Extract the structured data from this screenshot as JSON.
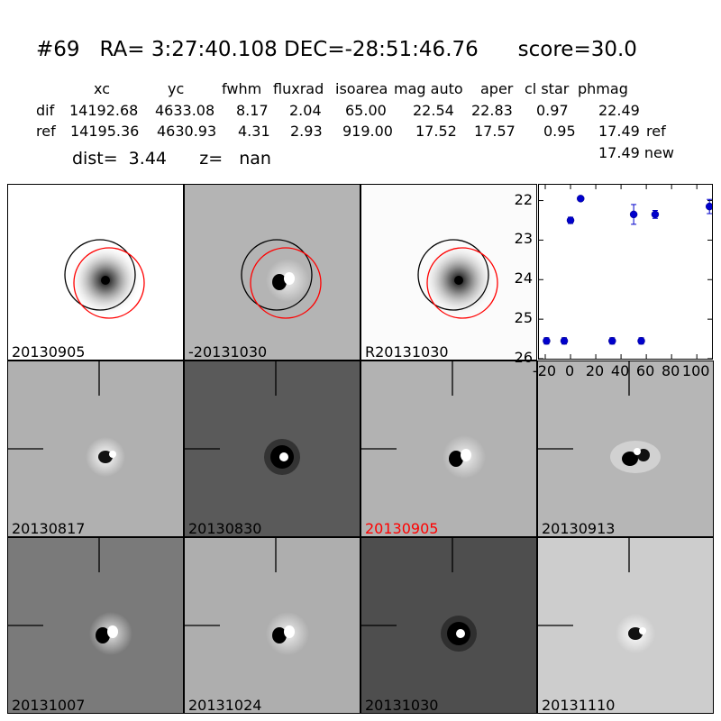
{
  "header": {
    "title": "#69   RA= 3:27:40.108 DEC=-28:51:46.76      score=30.0",
    "columns": [
      "xc",
      "yc",
      "fwhm",
      "fluxrad",
      "isoarea",
      "mag auto",
      "aper",
      "cl star",
      "phmag"
    ],
    "rows": [
      {
        "label": "dif",
        "values": [
          "14192.68",
          "4633.08",
          "8.17",
          "2.04",
          "65.00",
          "22.54",
          "22.83",
          "0.97",
          "22.49"
        ],
        "suffix": ""
      },
      {
        "label": "ref",
        "values": [
          "14195.36",
          "4630.93",
          "4.31",
          "2.93",
          "919.00",
          "17.52",
          "17.57",
          "0.95",
          "17.49"
        ],
        "suffix": "ref"
      }
    ],
    "extra_phmag": "17.49 new",
    "dist_line": "dist=  3.44      z=   nan"
  },
  "panels": [
    {
      "label": "20130905",
      "bg": "#ffffff",
      "style": "psf",
      "circles": true,
      "crosshair": false,
      "label_color": "#000000"
    },
    {
      "label": "-20131030",
      "bg": "#b4b4b4",
      "style": "dipole",
      "circles": true,
      "crosshair": false,
      "label_color": "#000000"
    },
    {
      "label": "R20131030",
      "bg": "#fbfbfb",
      "style": "psf",
      "circles": true,
      "crosshair": false,
      "label_color": "#000000"
    },
    {
      "label": "20130817",
      "bg": "#b0b0b0",
      "style": "dipole-light",
      "circles": false,
      "crosshair": true,
      "label_color": "#000000"
    },
    {
      "label": "20130830",
      "bg": "#5a5a5a",
      "style": "dark-ring",
      "circles": false,
      "crosshair": true,
      "label_color": "#000000"
    },
    {
      "label": "20130905",
      "bg": "#b2b2b2",
      "style": "dipole",
      "circles": false,
      "crosshair": true,
      "label_color": "#ff0000"
    },
    {
      "label": "20130913",
      "bg": "#b6b6b6",
      "style": "double",
      "circles": false,
      "crosshair": true,
      "label_color": "#000000"
    },
    {
      "label": "20131007",
      "bg": "#7a7a7a",
      "style": "dipole",
      "circles": false,
      "crosshair": true,
      "label_color": "#000000"
    },
    {
      "label": "20131024",
      "bg": "#aeaeae",
      "style": "dipole",
      "circles": false,
      "crosshair": true,
      "label_color": "#000000"
    },
    {
      "label": "20131030",
      "bg": "#4e4e4e",
      "style": "dark-ring",
      "circles": false,
      "crosshair": true,
      "label_color": "#000000"
    },
    {
      "label": "20131110",
      "bg": "#cdcdcd",
      "style": "dipole-light",
      "circles": false,
      "crosshair": true,
      "label_color": "#000000"
    }
  ],
  "chart_data": {
    "type": "scatter",
    "x_ticks": [
      "-20",
      "0",
      "20",
      "40",
      "60",
      "80",
      "100"
    ],
    "y_ticks": [
      "22",
      "23",
      "24",
      "25",
      "26"
    ],
    "xlim": [
      -25,
      112
    ],
    "ylim": [
      26,
      21.6
    ],
    "y_inverted": true,
    "marker_color": "#0000cc",
    "points": [
      {
        "x": -19,
        "y": 25.55,
        "err": 0.08
      },
      {
        "x": -5,
        "y": 25.55,
        "err": 0.08
      },
      {
        "x": 0,
        "y": 22.5,
        "err": 0.08
      },
      {
        "x": 8,
        "y": 21.95,
        "err": 0.05
      },
      {
        "x": 33,
        "y": 25.55,
        "err": 0.08
      },
      {
        "x": 50,
        "y": 22.35,
        "err": 0.25
      },
      {
        "x": 56,
        "y": 25.55,
        "err": 0.08
      },
      {
        "x": 67,
        "y": 22.35,
        "err": 0.1
      },
      {
        "x": 110,
        "y": 22.15,
        "err": 0.18
      }
    ]
  }
}
